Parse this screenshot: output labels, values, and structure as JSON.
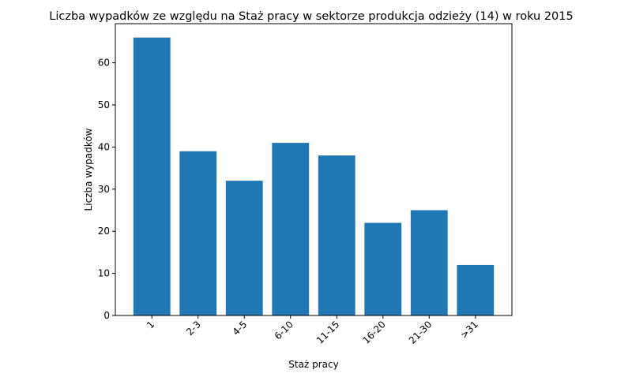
{
  "chart_data": {
    "type": "bar",
    "title": "Liczba wypadków ze względu na Staż pracy w sektorze produkcja odzieży  (14)   w roku 2015",
    "xlabel": "Staż pracy",
    "ylabel": "Liczba wypadków",
    "categories": [
      "1",
      "2-3",
      "4-5",
      "6-10",
      "11-15",
      "16-20",
      "21-30",
      ">31"
    ],
    "values": [
      66,
      39,
      32,
      41,
      38,
      22,
      25,
      12
    ],
    "ylim": [
      0,
      69.3
    ],
    "yticks": [
      0,
      10,
      20,
      30,
      40,
      50,
      60
    ],
    "bar_color": "#1f77b4",
    "grid": false,
    "legend": "none"
  }
}
